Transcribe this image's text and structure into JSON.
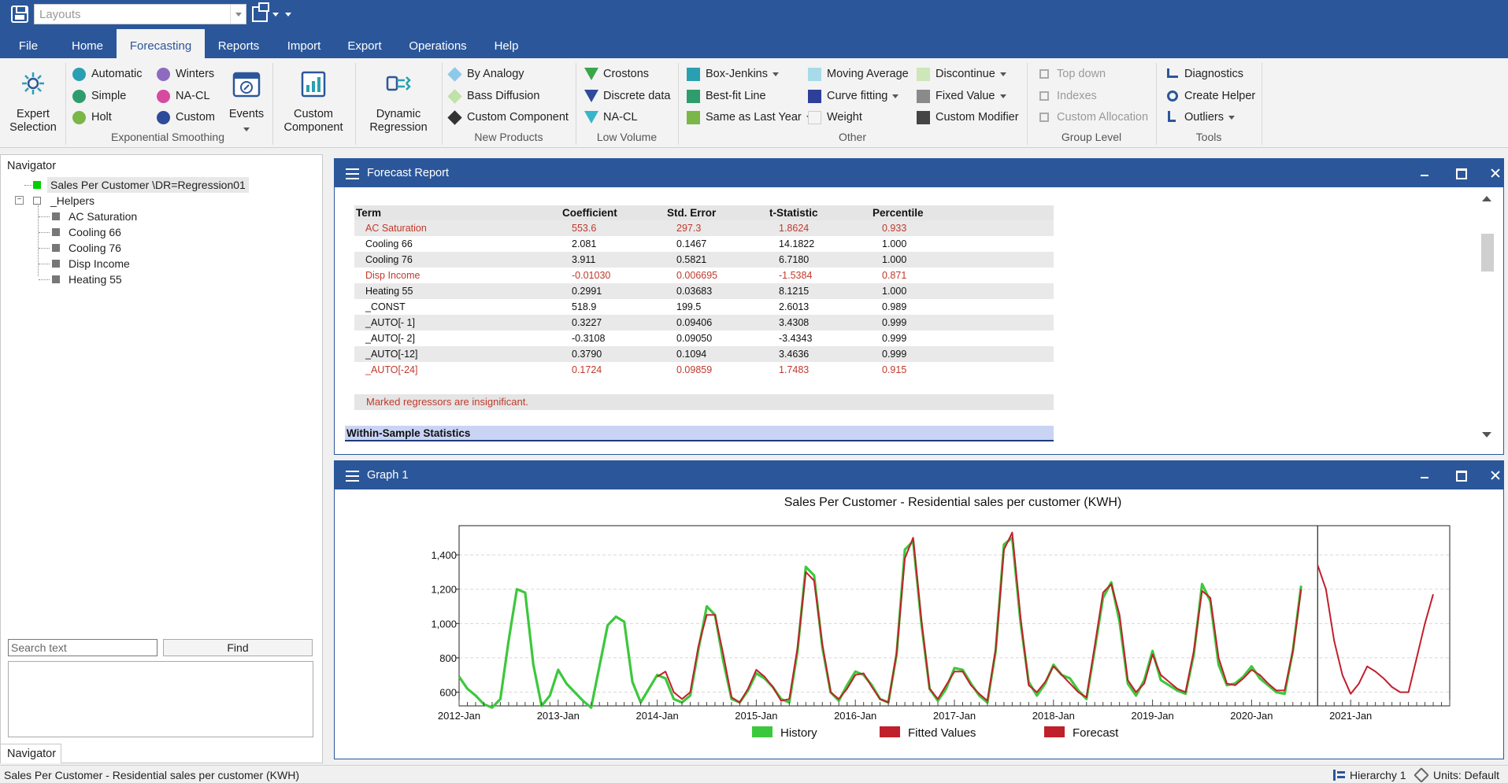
{
  "titlebar": {
    "layout_placeholder": "Layouts"
  },
  "menu": {
    "tabs": [
      "File",
      "Home",
      "Forecasting",
      "Reports",
      "Import",
      "Export",
      "Operations",
      "Help"
    ],
    "active": "Forecasting"
  },
  "ribbon": {
    "expert_selection": "Expert Selection",
    "exponential_smoothing": {
      "label": "Exponential Smoothing",
      "items": [
        "Automatic",
        "Simple",
        "Holt",
        "Winters",
        "NA-CL",
        "Custom"
      ],
      "events": "Events"
    },
    "custom_component": "Custom Component",
    "dynamic_regression": "Dynamic Regression",
    "new_products": {
      "label": "New Products",
      "items": [
        "By Analogy",
        "Bass Diffusion",
        "Custom Component"
      ]
    },
    "low_volume": {
      "label": "Low Volume",
      "items": [
        "Crostons",
        "Discrete data",
        "NA-CL"
      ]
    },
    "other": {
      "label": "Other",
      "items": [
        "Box-Jenkins",
        "Best-fit Line",
        "Same as Last Year",
        "Moving Average",
        "Curve fitting",
        "Weight",
        "Discontinue",
        "Fixed Value",
        "Custom Modifier"
      ]
    },
    "group_level": {
      "label": "Group Level",
      "items": [
        "Top down",
        "Indexes",
        "Custom Allocation"
      ]
    },
    "tools": {
      "label": "Tools",
      "items": [
        "Diagnostics",
        "Create Helper",
        "Outliers"
      ]
    },
    "colors": {
      "automatic": "#29a0b1",
      "simple": "#2e9d6b",
      "holt": "#7ab648",
      "winters": "#8e6bbf",
      "nacl": "#d64aa0",
      "custom": "#2e4a9a",
      "crostons": "#3aa54a",
      "discrete": "#2e4a9a",
      "nacl_low": "#38b5c8"
    }
  },
  "navigator": {
    "title": "Navigator",
    "root": "Sales Per Customer \\DR=Regression01",
    "group": "_Helpers",
    "children": [
      "AC Saturation",
      "Cooling 66",
      "Cooling 76",
      "Disp Income",
      "Heating 55"
    ],
    "search_placeholder": "Search text",
    "find_label": "Find",
    "tab_label": "Navigator"
  },
  "report": {
    "title": "Forecast Report",
    "columns": [
      "Term",
      "Coefficient",
      "Std. Error",
      "t-Statistic",
      "Percentile"
    ],
    "rows": [
      {
        "term": "AC Saturation",
        "coef": "553.6",
        "se": "297.3",
        "t": "1.8624",
        "pct": "0.933",
        "insig": true
      },
      {
        "term": "Cooling 66",
        "coef": "2.081",
        "se": "0.1467",
        "t": "14.1822",
        "pct": "1.000",
        "insig": false
      },
      {
        "term": "Cooling 76",
        "coef": "3.911",
        "se": "0.5821",
        "t": "6.7180",
        "pct": "1.000",
        "insig": false
      },
      {
        "term": "Disp Income",
        "coef": "-0.01030",
        "se": "0.006695",
        "t": "-1.5384",
        "pct": "0.871",
        "insig": true
      },
      {
        "term": "Heating 55",
        "coef": "0.2991",
        "se": "0.03683",
        "t": "8.1215",
        "pct": "1.000",
        "insig": false
      },
      {
        "term": "_CONST",
        "coef": "518.9",
        "se": "199.5",
        "t": "2.6013",
        "pct": "0.989",
        "insig": false
      },
      {
        "term": "_AUTO[- 1]",
        "coef": "0.3227",
        "se": "0.09406",
        "t": "3.4308",
        "pct": "0.999",
        "insig": false
      },
      {
        "term": "_AUTO[- 2]",
        "coef": "-0.3108",
        "se": "0.09050",
        "t": "-3.4343",
        "pct": "0.999",
        "insig": false
      },
      {
        "term": "_AUTO[-12]",
        "coef": "0.3790",
        "se": "0.1094",
        "t": "3.4636",
        "pct": "0.999",
        "insig": false
      },
      {
        "term": "_AUTO[-24]",
        "coef": "0.1724",
        "se": "0.09859",
        "t": "1.7483",
        "pct": "0.915",
        "insig": true
      }
    ],
    "note": "Marked regressors are insignificant.",
    "section": "Within-Sample Statistics"
  },
  "graph": {
    "panel_title": "Graph 1"
  },
  "chart_data": {
    "type": "line",
    "title": "Sales Per Customer - Residential sales per customer (KWH)",
    "x_tick_labels": [
      "2012-Jan",
      "2013-Jan",
      "2014-Jan",
      "2015-Jan",
      "2016-Jan",
      "2017-Jan",
      "2018-Jan",
      "2019-Jan",
      "2020-Jan",
      "2021-Jan"
    ],
    "y_ticks": [
      "600",
      "800",
      "1,000",
      "1,200",
      "1,400"
    ],
    "ylim": [
      520,
      1570
    ],
    "x_start": "2012-Jan",
    "forecast_start": "2020-Sep",
    "grid": true,
    "legend_position": "bottom",
    "series": [
      {
        "name": "History",
        "color": "#3cc83c",
        "values": [
          690,
          620,
          580,
          530,
          510,
          560,
          900,
          1200,
          1180,
          760,
          520,
          580,
          730,
          650,
          600,
          550,
          510,
          750,
          990,
          1040,
          1010,
          660,
          540,
          620,
          700,
          680,
          560,
          540,
          580,
          850,
          1100,
          1050,
          780,
          560,
          540,
          610,
          710,
          680,
          630,
          560,
          540,
          840,
          1330,
          1280,
          860,
          600,
          550,
          640,
          720,
          700,
          640,
          560,
          540,
          820,
          1430,
          1480,
          1000,
          620,
          550,
          620,
          740,
          730,
          650,
          580,
          540,
          840,
          1460,
          1500,
          1010,
          660,
          580,
          650,
          760,
          700,
          680,
          610,
          560,
          850,
          1150,
          1240,
          1010,
          650,
          580,
          670,
          840,
          670,
          640,
          610,
          590,
          820,
          1230,
          1130,
          760,
          640,
          650,
          690,
          750,
          680,
          640,
          600,
          590,
          840,
          1220
        ]
      },
      {
        "name": "Fitted Values",
        "color": "#c0202c",
        "start_index": 24,
        "values": [
          690,
          720,
          600,
          560,
          600,
          870,
          1050,
          1050,
          820,
          570,
          540,
          620,
          730,
          690,
          630,
          550,
          560,
          860,
          1300,
          1250,
          880,
          600,
          560,
          620,
          700,
          710,
          630,
          560,
          540,
          830,
          1380,
          1500,
          1020,
          620,
          560,
          640,
          720,
          720,
          640,
          590,
          550,
          850,
          1430,
          1530,
          1040,
          640,
          600,
          660,
          750,
          700,
          650,
          600,
          570,
          870,
          1180,
          1230,
          1050,
          670,
          600,
          650,
          820,
          700,
          660,
          620,
          600,
          840,
          1190,
          1150,
          800,
          650,
          640,
          680,
          730,
          700,
          650,
          610,
          610,
          840,
          1200
        ]
      },
      {
        "name": "Forecast",
        "color": "#c0202c",
        "start_index": 104,
        "values": [
          1340,
          1200,
          900,
          700,
          590,
          650,
          750,
          720,
          680,
          630,
          600,
          600,
          800,
          1000,
          1170
        ]
      }
    ]
  },
  "status": {
    "left": "Sales Per Customer - Residential sales per customer (KWH)",
    "hierarchy": "Hierarchy 1",
    "units": "Units: Default"
  }
}
